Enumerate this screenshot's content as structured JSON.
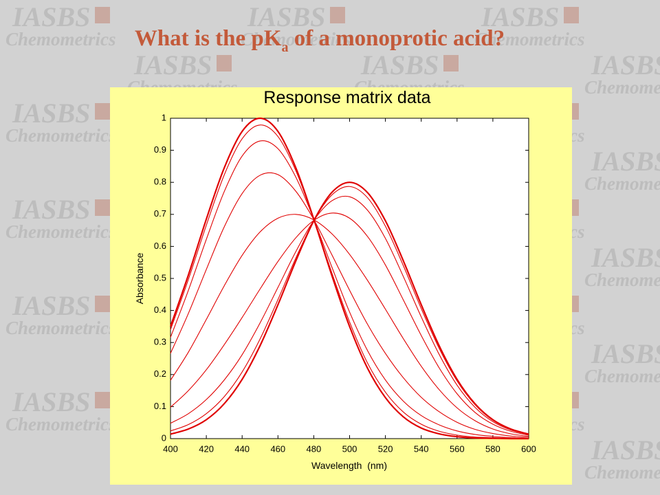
{
  "slide": {
    "title": {
      "text": "What is the pK",
      "subscript": "a",
      "rest": " of a monoprotic acid?"
    },
    "watermark": {
      "logo": "IASBS",
      "name": "Chemometrics"
    }
  },
  "chart_data": {
    "type": "line",
    "title": "Response matrix data",
    "xlabel": "Wavelength  (nm)",
    "ylabel": "Absorbance",
    "color": "#e00000",
    "x": [
      400,
      410,
      420,
      430,
      440,
      450,
      460,
      470,
      480,
      490,
      500,
      510,
      520,
      530,
      540,
      550,
      560,
      570,
      580,
      590,
      600
    ],
    "series": [
      {
        "values": [
          0.35,
          0.511,
          0.685,
          0.845,
          0.959,
          1.0,
          0.959,
          0.845,
          0.685,
          0.511,
          0.35,
          0.22,
          0.128,
          0.068,
          0.033,
          0.015,
          0.006,
          0.002,
          0.001,
          0.0,
          0.0
        ]
      },
      {
        "values": [
          0.34,
          0.497,
          0.666,
          0.823,
          0.936,
          0.979,
          0.943,
          0.836,
          0.685,
          0.519,
          0.364,
          0.236,
          0.145,
          0.083,
          0.045,
          0.023,
          0.011,
          0.005,
          0.003,
          0.001,
          0.0
        ]
      },
      {
        "values": [
          0.316,
          0.463,
          0.622,
          0.771,
          0.882,
          0.929,
          0.905,
          0.816,
          0.685,
          0.537,
          0.395,
          0.275,
          0.183,
          0.117,
          0.072,
          0.043,
          0.024,
          0.013,
          0.007,
          0.003,
          0.001
        ]
      },
      {
        "values": [
          0.266,
          0.391,
          0.528,
          0.661,
          0.765,
          0.822,
          0.824,
          0.772,
          0.684,
          0.575,
          0.463,
          0.357,
          0.266,
          0.19,
          0.129,
          0.084,
          0.051,
          0.029,
          0.016,
          0.008,
          0.004
        ]
      },
      {
        "values": [
          0.182,
          0.27,
          0.372,
          0.477,
          0.572,
          0.645,
          0.688,
          0.7,
          0.683,
          0.64,
          0.575,
          0.494,
          0.404,
          0.312,
          0.226,
          0.153,
          0.096,
          0.056,
          0.03,
          0.015,
          0.007
        ]
      },
      {
        "values": [
          0.098,
          0.15,
          0.215,
          0.293,
          0.378,
          0.467,
          0.553,
          0.627,
          0.681,
          0.704,
          0.688,
          0.631,
          0.542,
          0.433,
          0.322,
          0.221,
          0.14,
          0.082,
          0.045,
          0.023,
          0.011
        ]
      },
      {
        "values": [
          0.048,
          0.078,
          0.122,
          0.183,
          0.262,
          0.361,
          0.472,
          0.584,
          0.681,
          0.742,
          0.755,
          0.713,
          0.625,
          0.506,
          0.38,
          0.263,
          0.167,
          0.098,
          0.053,
          0.027,
          0.013
        ]
      },
      {
        "values": [
          0.024,
          0.044,
          0.078,
          0.131,
          0.208,
          0.311,
          0.434,
          0.564,
          0.68,
          0.76,
          0.787,
          0.752,
          0.663,
          0.54,
          0.406,
          0.282,
          0.18,
          0.106,
          0.057,
          0.029,
          0.014
        ]
      },
      {
        "values": [
          0.014,
          0.03,
          0.059,
          0.109,
          0.185,
          0.29,
          0.418,
          0.555,
          0.68,
          0.768,
          0.8,
          0.768,
          0.68,
          0.555,
          0.418,
          0.29,
          0.185,
          0.109,
          0.059,
          0.03,
          0.014
        ]
      }
    ],
    "xlim": [
      400,
      600
    ],
    "xticks": [
      400,
      420,
      440,
      460,
      480,
      500,
      520,
      540,
      560,
      580,
      600
    ],
    "ylim": [
      0,
      1
    ],
    "yticks": [
      0,
      0.1,
      0.2,
      0.3,
      0.4,
      0.5,
      0.6,
      0.7,
      0.8,
      0.9,
      1
    ]
  }
}
